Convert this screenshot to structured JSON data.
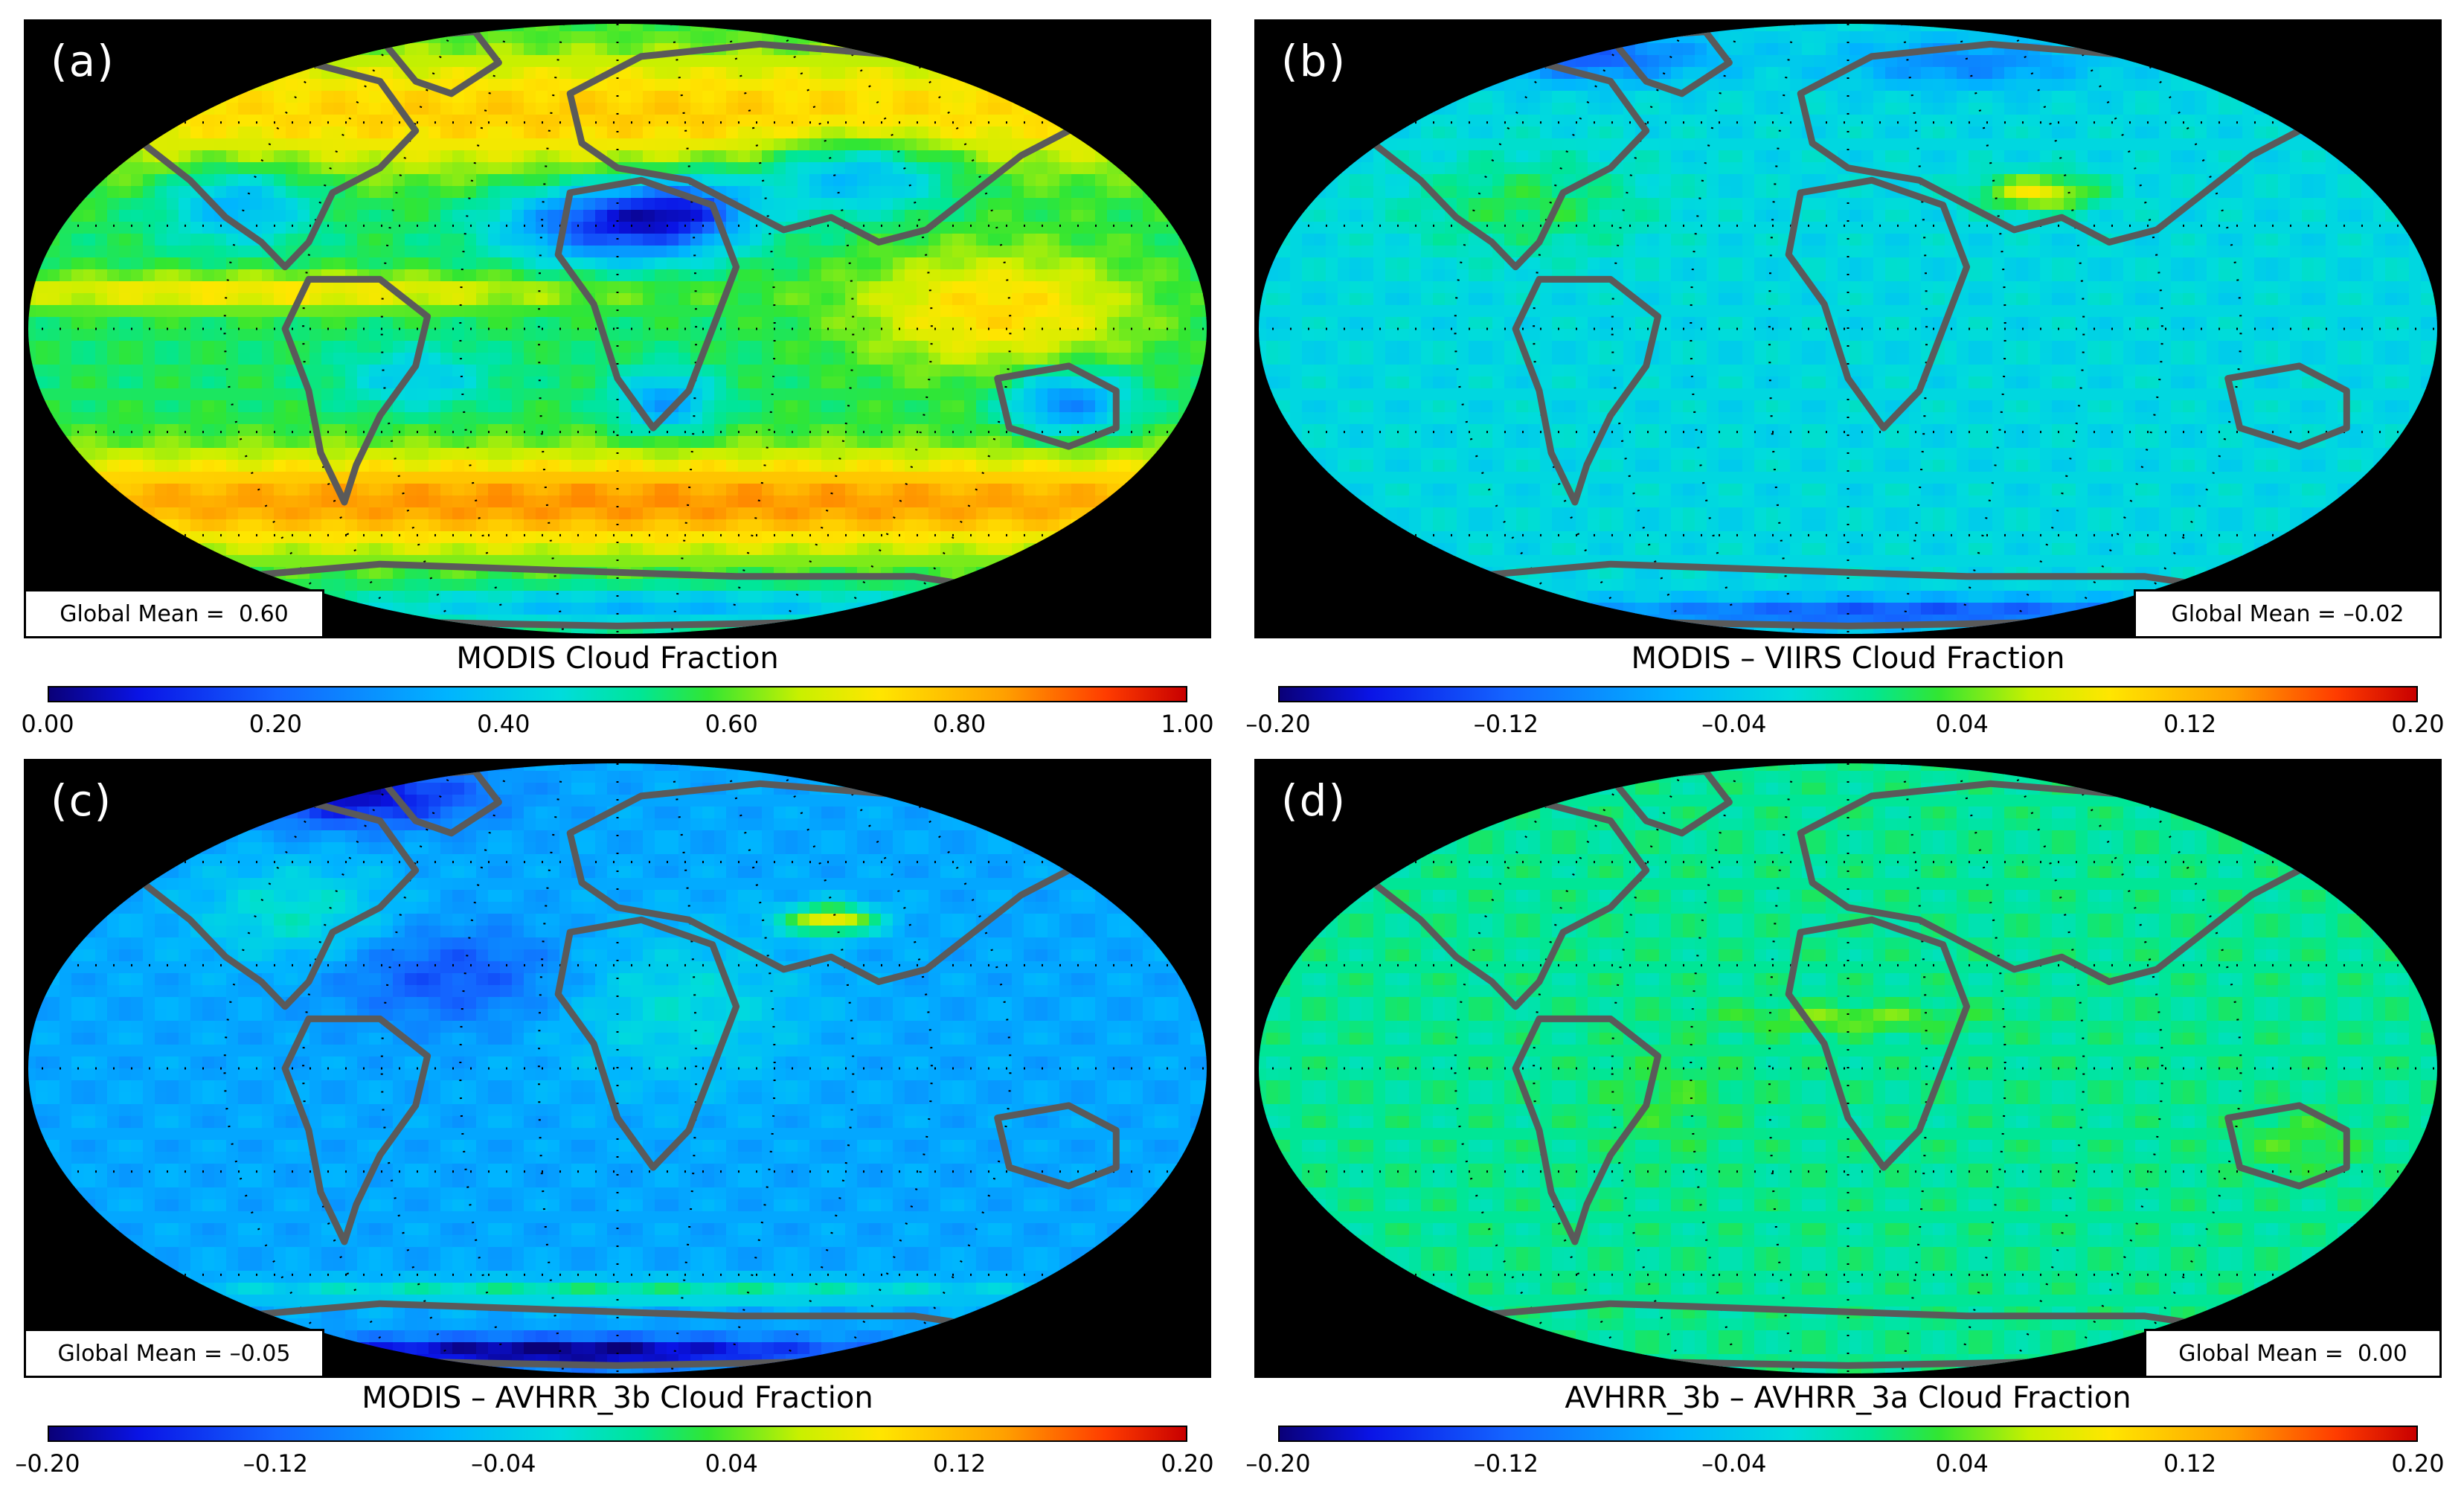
{
  "chart_data": [
    {
      "type": "heatmap",
      "panel_label": "(a)",
      "title": "MODIS Cloud Fraction",
      "global_mean": "Global Mean =  0.60",
      "mean_position": "bottom-left",
      "colorbar_ticks": [
        "0.00",
        "0.20",
        "0.40",
        "0.60",
        "0.80",
        "1.00"
      ],
      "vmin": 0.0,
      "vmax": 1.0,
      "field": "absolute",
      "base_level": 0.62
    },
    {
      "type": "heatmap",
      "panel_label": "(b)",
      "title": "MODIS – VIIRS Cloud Fraction",
      "global_mean": "Global Mean = –0.02",
      "mean_position": "bottom-right",
      "colorbar_ticks": [
        "–0.20",
        "–0.12",
        "–0.04",
        "0.04",
        "0.12",
        "0.20"
      ],
      "vmin": -0.2,
      "vmax": 0.2,
      "field": "diff_b",
      "base_level": -0.02
    },
    {
      "type": "heatmap",
      "panel_label": "(c)",
      "title": "MODIS – AVHRR_3b Cloud Fraction",
      "global_mean": "Global Mean = –0.05",
      "mean_position": "bottom-left",
      "colorbar_ticks": [
        "–0.20",
        "–0.12",
        "–0.04",
        "0.04",
        "0.12",
        "0.20"
      ],
      "vmin": -0.2,
      "vmax": 0.2,
      "field": "diff_c",
      "base_level": -0.05
    },
    {
      "type": "heatmap",
      "panel_label": "(d)",
      "title": "AVHRR_3b – AVHRR_3a Cloud Fraction",
      "global_mean": "Global Mean =  0.00",
      "mean_position": "bottom-right",
      "colorbar_ticks": [
        "–0.20",
        "–0.12",
        "–0.04",
        "0.04",
        "0.12",
        "0.20"
      ],
      "vmin": -0.2,
      "vmax": 0.2,
      "field": "diff_d",
      "base_level": 0.01
    }
  ],
  "colors": {
    "background": "#000000",
    "coastline": "#5a5a5a",
    "gridline_dots": "#000000"
  }
}
